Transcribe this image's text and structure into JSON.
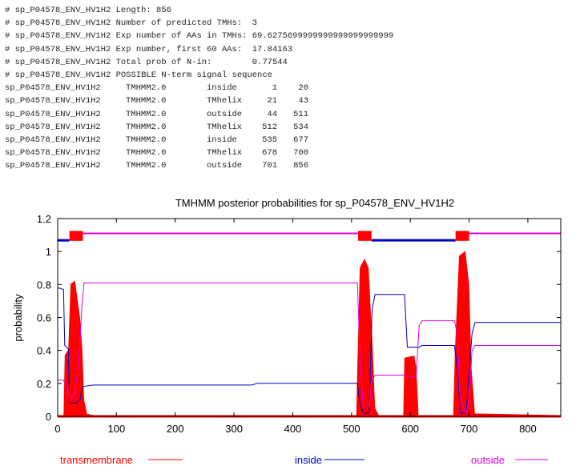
{
  "header_lines": [
    "# sp_P04578_ENV_HV1H2 Length: 856",
    "# sp_P04578_ENV_HV1H2 Number of predicted TMHs:  3",
    "# sp_P04578_ENV_HV1H2 Exp number of AAs in TMHs: 69.6275699999999999999999999",
    "# sp_P04578_ENV_HV1H2 Exp number, first 60 AAs:  17.84163",
    "# sp_P04578_ENV_HV1H2 Total prob of N-in:        0.77544",
    "# sp_P04578_ENV_HV1H2 POSSIBLE N-term signal sequence"
  ],
  "topology": [
    {
      "name": "sp_P04578_ENV_HV1H2",
      "method": "TMHMM2.0",
      "type": "inside",
      "start": "1",
      "end": "20"
    },
    {
      "name": "sp_P04578_ENV_HV1H2",
      "method": "TMHMM2.0",
      "type": "TMhelix",
      "start": "21",
      "end": "43"
    },
    {
      "name": "sp_P04578_ENV_HV1H2",
      "method": "TMHMM2.0",
      "type": "outside",
      "start": "44",
      "end": "511"
    },
    {
      "name": "sp_P04578_ENV_HV1H2",
      "method": "TMHMM2.0",
      "type": "TMhelix",
      "start": "512",
      "end": "534"
    },
    {
      "name": "sp_P04578_ENV_HV1H2",
      "method": "TMHMM2.0",
      "type": "inside",
      "start": "535",
      "end": "677"
    },
    {
      "name": "sp_P04578_ENV_HV1H2",
      "method": "TMHMM2.0",
      "type": "TMhelix",
      "start": "678",
      "end": "700"
    },
    {
      "name": "sp_P04578_ENV_HV1H2",
      "method": "TMHMM2.0",
      "type": "outside",
      "start": "701",
      "end": "856"
    }
  ],
  "chart_data": {
    "type": "line",
    "title": "TMHMM posterior probabilities for sp_P04578_ENV_HV1H2",
    "xlabel": "",
    "ylabel": "probability",
    "xlim": [
      0,
      856
    ],
    "ylim": [
      0,
      1.2
    ],
    "xticks": [
      "0",
      "100",
      "200",
      "300",
      "400",
      "500",
      "600",
      "700",
      "800"
    ],
    "yticks": [
      "0",
      "0.2",
      "0.4",
      "0.6",
      "0.8",
      "1",
      "1.2"
    ],
    "legend_placement": "bottom",
    "colors": {
      "transmembrane": "#ff0000",
      "inside": "#0000c0",
      "outside": "#e000e0"
    },
    "series": [
      {
        "name": "transmembrane",
        "fill": true,
        "points": [
          [
            0,
            0
          ],
          [
            12,
            0
          ],
          [
            14,
            0.37
          ],
          [
            20,
            0.4
          ],
          [
            24,
            0.8
          ],
          [
            28,
            0.81
          ],
          [
            32,
            0.7
          ],
          [
            36,
            0.6
          ],
          [
            40,
            0.4
          ],
          [
            43,
            0.1
          ],
          [
            48,
            0.01
          ],
          [
            60,
            0
          ],
          [
            510,
            0
          ],
          [
            512,
            0.3
          ],
          [
            516,
            0.9
          ],
          [
            522,
            0.94
          ],
          [
            527,
            0.9
          ],
          [
            534,
            0.4
          ],
          [
            538,
            0.05
          ],
          [
            545,
            0
          ],
          [
            590,
            0
          ],
          [
            592,
            0.35
          ],
          [
            605,
            0.36
          ],
          [
            608,
            0.3
          ],
          [
            612,
            0
          ],
          [
            675,
            0
          ],
          [
            678,
            0.4
          ],
          [
            685,
            0.97
          ],
          [
            692,
            0.99
          ],
          [
            698,
            0.8
          ],
          [
            702,
            0.3
          ],
          [
            708,
            0.01
          ],
          [
            856,
            0
          ]
        ]
      },
      {
        "name": "inside",
        "fill": false,
        "points": [
          [
            0,
            0.78
          ],
          [
            10,
            0.77
          ],
          [
            12,
            0.43
          ],
          [
            18,
            0.41
          ],
          [
            20,
            0.08
          ],
          [
            30,
            0.08
          ],
          [
            38,
            0.1
          ],
          [
            42,
            0.18
          ],
          [
            60,
            0.19
          ],
          [
            330,
            0.19
          ],
          [
            340,
            0.2
          ],
          [
            510,
            0.2
          ],
          [
            514,
            0.08
          ],
          [
            520,
            0.02
          ],
          [
            530,
            0.02
          ],
          [
            535,
            0.65
          ],
          [
            540,
            0.74
          ],
          [
            590,
            0.74
          ],
          [
            595,
            0.42
          ],
          [
            615,
            0.42
          ],
          [
            620,
            0.43
          ],
          [
            675,
            0.43
          ],
          [
            680,
            0.3
          ],
          [
            685,
            0.02
          ],
          [
            695,
            0.02
          ],
          [
            705,
            0.5
          ],
          [
            710,
            0.57
          ],
          [
            856,
            0.57
          ]
        ]
      },
      {
        "name": "outside",
        "fill": false,
        "points": [
          [
            0,
            0.22
          ],
          [
            10,
            0.22
          ],
          [
            18,
            0.15
          ],
          [
            22,
            0.11
          ],
          [
            28,
            0.12
          ],
          [
            35,
            0.3
          ],
          [
            42,
            0.7
          ],
          [
            45,
            0.81
          ],
          [
            510,
            0.81
          ],
          [
            515,
            0.3
          ],
          [
            520,
            0.06
          ],
          [
            530,
            0.06
          ],
          [
            535,
            0.22
          ],
          [
            540,
            0.25
          ],
          [
            590,
            0.25
          ],
          [
            595,
            0.24
          ],
          [
            610,
            0.24
          ],
          [
            615,
            0.55
          ],
          [
            620,
            0.58
          ],
          [
            675,
            0.58
          ],
          [
            680,
            0.5
          ],
          [
            685,
            0.1
          ],
          [
            695,
            0.02
          ],
          [
            700,
            0.1
          ],
          [
            705,
            0.4
          ],
          [
            710,
            0.43
          ],
          [
            856,
            0.43
          ]
        ]
      }
    ],
    "legend": [
      "transmembrane",
      "inside",
      "outside"
    ]
  }
}
